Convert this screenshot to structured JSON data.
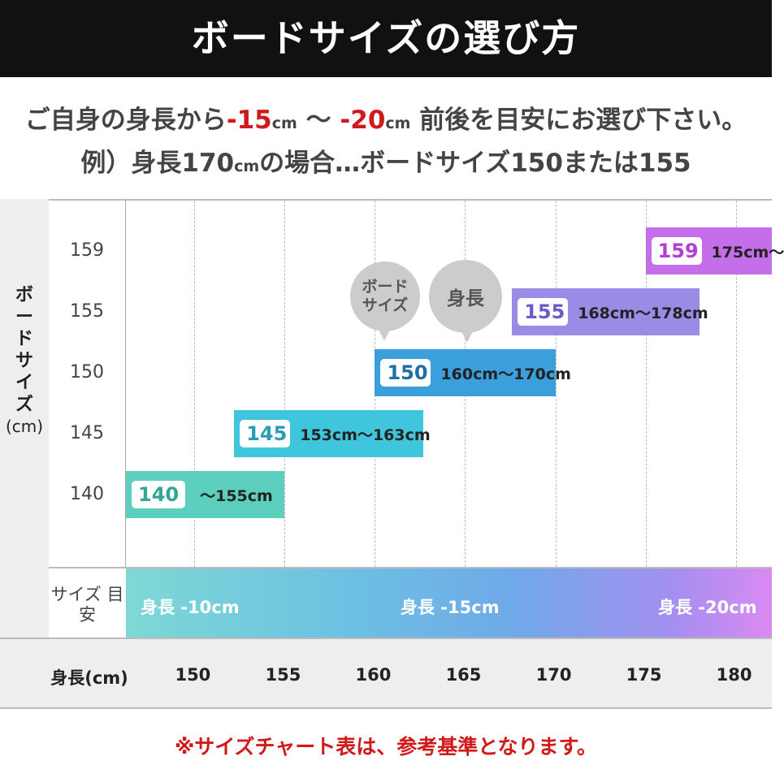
{
  "header": {
    "title": "ボードサイズの選び方"
  },
  "intro": {
    "line1_pre": "ご自身の身長から",
    "line1_a": "-15",
    "line1_cm1": "cm",
    "line1_tilde": " 〜 ",
    "line1_b": "-20",
    "line1_cm2": "cm",
    "line1_post": " 前後を目安にお選び下さい。",
    "line2_pre": "例）身長170",
    "line2_cm": "cm",
    "line2_post": "の場合…ボードサイズ150または155"
  },
  "chart_data": {
    "type": "bar",
    "orientation": "horizontal range",
    "ylabel": "ボードサイズ (cm)",
    "xlabel": "身長(cm)",
    "x_ticks": [
      "150",
      "155",
      "160",
      "165",
      "170",
      "175",
      "180"
    ],
    "xlim": [
      146.2,
      182
    ],
    "categories": [
      "159",
      "155",
      "150",
      "145",
      "140"
    ],
    "series": [
      {
        "board": "159",
        "from": 175,
        "to": null,
        "range_label": "175cm〜",
        "color": "#c46ee9",
        "text_color": "#b23ed6"
      },
      {
        "board": "155",
        "from": 167.6,
        "to": 178,
        "range_label": "168cm〜178cm",
        "color": "#9a8ce6",
        "text_color": "#6a5ccc"
      },
      {
        "board": "150",
        "from": 160,
        "to": 170,
        "range_label": "160cm〜170cm",
        "color": "#3b9fdc",
        "text_color": "#1e6fa8"
      },
      {
        "board": "145",
        "from": 152.2,
        "to": 162.7,
        "range_label": "153cm〜163cm",
        "color": "#40c6dc",
        "text_color": "#2a9db3"
      },
      {
        "board": "140",
        "from": null,
        "to": 155,
        "range_label": "〜155cm",
        "color": "#5ccfbf",
        "text_color": "#2fa792"
      }
    ],
    "annotations": [
      "ボード\nサイズ",
      "身長"
    ],
    "grid": "vertical dashed"
  },
  "bubbles": {
    "board": "ボード サイズ",
    "height": "身長"
  },
  "guide": {
    "label": "サイズ 目安",
    "items": [
      "身長 -10cm",
      "身長 -15cm",
      "身長 -20cm"
    ]
  },
  "footer": "※サイズチャート表は、参考基準となります。"
}
